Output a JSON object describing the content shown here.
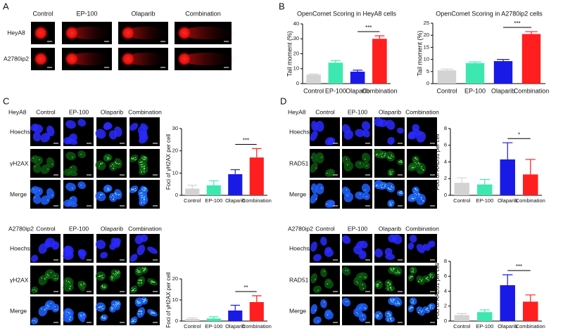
{
  "panel_labels": [
    "A",
    "B",
    "C",
    "D"
  ],
  "comet": {
    "columns": [
      "Control",
      "EP-100",
      "Olaparib",
      "Combination"
    ],
    "rows": [
      "HeyA8",
      "A2780ip2"
    ]
  },
  "if_panels": [
    {
      "cell_line": "HeyA8",
      "columns": [
        "Control",
        "EP-100",
        "Olaparib",
        "Combination"
      ],
      "rows": [
        "Hoechst",
        "γH2AX",
        "Merge"
      ]
    },
    {
      "cell_line": "A2780ip2",
      "columns": [
        "Control",
        "EP-100",
        "Olaparib",
        "Combination"
      ],
      "rows": [
        "Hoechst",
        "γH2AX",
        "Merge"
      ]
    },
    {
      "cell_line": "HeyA8",
      "columns": [
        "Control",
        "EP-100",
        "Olaparib",
        "Combination"
      ],
      "rows": [
        "Hoechst",
        "RAD51",
        "Merge"
      ]
    },
    {
      "cell_line": "A2780ip2",
      "columns": [
        "Control",
        "EP-100",
        "Olaparib",
        "Combination"
      ],
      "rows": [
        "Hoechst",
        "RAD51",
        "Merge"
      ]
    }
  ],
  "chart_data": [
    {
      "type": "bar",
      "title": "OpenComet Scoring in HeyA8 cells",
      "y_label": "Tail moment (%)",
      "categories": [
        "Control",
        "EP-100",
        "Olaparib",
        "Combination"
      ],
      "values": [
        6,
        14,
        8,
        30
      ],
      "errors": [
        0.5,
        1.5,
        1,
        2
      ],
      "colors": [
        "#d3d3d3",
        "#3de8b0",
        "#1a1ae6",
        "#ff1f1f"
      ],
      "ylim": [
        0,
        40
      ],
      "yticks": [
        0,
        10,
        20,
        30,
        40
      ],
      "annotation": "***"
    },
    {
      "type": "bar",
      "title": "OpenComet Scoring in A2780ip2 cells",
      "y_label": "Tail moment (%)",
      "categories": [
        "Control",
        "EP-100",
        "Olaparib",
        "Combination"
      ],
      "values": [
        5.5,
        8.5,
        9.3,
        20.5
      ],
      "errors": [
        0.5,
        0.5,
        0.7,
        1
      ],
      "colors": [
        "#d3d3d3",
        "#3de8b0",
        "#1a1ae6",
        "#ff1f1f"
      ],
      "ylim": [
        0,
        25
      ],
      "yticks": [
        0,
        5,
        10,
        15,
        20,
        25
      ],
      "annotation": "***"
    },
    {
      "type": "bar",
      "y_label": "Foci of γH2AX per cell",
      "categories": [
        "Control",
        "EP-100",
        "Olaparib",
        "Combination"
      ],
      "values": [
        3,
        4.5,
        9.5,
        17
      ],
      "errors": [
        1.5,
        2,
        2,
        4
      ],
      "colors": [
        "#d3d3d3",
        "#3de8b0",
        "#1a1ae6",
        "#ff1f1f"
      ],
      "ylim": [
        0,
        30
      ],
      "yticks": [
        0,
        10,
        20,
        30
      ],
      "annotation": "***"
    },
    {
      "type": "bar",
      "y_label": "Foci of γH2AX per cell",
      "categories": [
        "Control",
        "EP-100",
        "Olaparib",
        "Combination"
      ],
      "values": [
        1,
        1.2,
        5,
        9
      ],
      "errors": [
        0.5,
        0.8,
        2.5,
        3
      ],
      "colors": [
        "#d3d3d3",
        "#3de8b0",
        "#1a1ae6",
        "#ff1f1f"
      ],
      "ylim": [
        0,
        20
      ],
      "yticks": [
        0,
        10,
        20
      ],
      "annotation": "**"
    },
    {
      "type": "bar",
      "y_label": "Foci of RAD51 per cell",
      "categories": [
        "Control",
        "EP-100",
        "Olaparib",
        "Combination"
      ],
      "values": [
        1.5,
        1.3,
        4.3,
        2.5
      ],
      "errors": [
        0.6,
        0.6,
        2,
        1.8
      ],
      "colors": [
        "#d3d3d3",
        "#3de8b0",
        "#1a1ae6",
        "#ff1f1f"
      ],
      "ylim": [
        0,
        8
      ],
      "yticks": [
        0,
        2,
        4,
        6,
        8
      ],
      "annotation": "*"
    },
    {
      "type": "bar",
      "y_label": "Foci of RAD51 per cell",
      "categories": [
        "Control",
        "EP-100",
        "Olaparib",
        "Combination"
      ],
      "values": [
        0.8,
        1.2,
        4.8,
        2.6
      ],
      "errors": [
        0.2,
        0.3,
        1.4,
        0.9
      ],
      "colors": [
        "#d3d3d3",
        "#3de8b0",
        "#1a1ae6",
        "#ff1f1f"
      ],
      "ylim": [
        0,
        8
      ],
      "yticks": [
        0,
        2,
        4,
        6,
        8
      ],
      "annotation": "***"
    }
  ]
}
